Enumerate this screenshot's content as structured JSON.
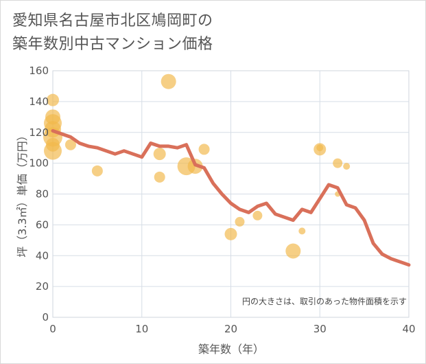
{
  "title_line1": "愛知県名古屋市北区鳩岡町の",
  "title_line2": "築年数別中古マンション価格",
  "chart_data": {
    "type": "scatter",
    "xlabel": "築年数（年）",
    "ylabel": "坪（3.3㎡）単価（万円）",
    "xlim": [
      0,
      40
    ],
    "ylim": [
      0,
      160
    ],
    "xticks": [
      0,
      10,
      20,
      30,
      40
    ],
    "yticks": [
      0,
      20,
      40,
      60,
      80,
      100,
      120,
      140,
      160
    ],
    "grid": true,
    "note": "円の大きさは、取引のあった物件面積を示す",
    "colors": {
      "bubble": "#f2b84b",
      "line": "#d9705a",
      "grid": "#d6dde6"
    },
    "bubbles": [
      {
        "x": 0,
        "y": 141,
        "s": 9
      },
      {
        "x": 0,
        "y": 130,
        "s": 11
      },
      {
        "x": 0,
        "y": 126,
        "s": 13
      },
      {
        "x": 0,
        "y": 122,
        "s": 12
      },
      {
        "x": 0,
        "y": 117,
        "s": 14
      },
      {
        "x": 0,
        "y": 112,
        "s": 10
      },
      {
        "x": 0,
        "y": 108,
        "s": 13
      },
      {
        "x": 2,
        "y": 112,
        "s": 8
      },
      {
        "x": 5,
        "y": 95,
        "s": 8
      },
      {
        "x": 12,
        "y": 106,
        "s": 9
      },
      {
        "x": 12,
        "y": 91,
        "s": 8
      },
      {
        "x": 13,
        "y": 153,
        "s": 11
      },
      {
        "x": 15,
        "y": 98,
        "s": 13
      },
      {
        "x": 16,
        "y": 98,
        "s": 11
      },
      {
        "x": 17,
        "y": 109,
        "s": 8
      },
      {
        "x": 20,
        "y": 54,
        "s": 9
      },
      {
        "x": 21,
        "y": 62,
        "s": 7
      },
      {
        "x": 23,
        "y": 66,
        "s": 7
      },
      {
        "x": 27,
        "y": 43,
        "s": 11
      },
      {
        "x": 28,
        "y": 56,
        "s": 5
      },
      {
        "x": 30,
        "y": 109,
        "s": 9
      },
      {
        "x": 30,
        "y": 110,
        "s": 5
      },
      {
        "x": 32,
        "y": 100,
        "s": 7
      },
      {
        "x": 32,
        "y": 80,
        "s": 4
      },
      {
        "x": 33,
        "y": 98,
        "s": 5
      }
    ],
    "series": [
      {
        "x": [
          0,
          1,
          2,
          3,
          4,
          5,
          6,
          7,
          8,
          9,
          10,
          11,
          12,
          13,
          14,
          15,
          16,
          17,
          18,
          19,
          20,
          21,
          22,
          23,
          24,
          25,
          26,
          27,
          28,
          29,
          30,
          31,
          32,
          33,
          34,
          35,
          36,
          37,
          38,
          39,
          40
        ],
        "y": [
          121,
          119,
          117,
          113,
          111,
          110,
          108,
          106,
          108,
          106,
          104,
          113,
          111,
          111,
          110,
          112,
          99,
          97,
          87,
          80,
          74,
          70,
          68,
          72,
          74,
          67,
          65,
          63,
          70,
          68,
          77,
          86,
          84,
          73,
          71,
          63,
          48,
          41,
          38,
          36,
          34
        ]
      }
    ]
  }
}
